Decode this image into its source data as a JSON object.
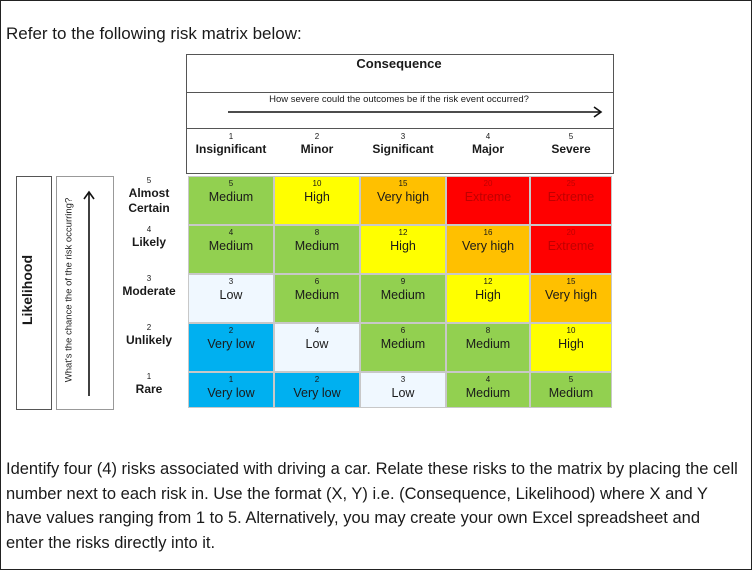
{
  "intro_text": "Refer to the following risk matrix below:",
  "matrix": {
    "consequence_title": "Consequence",
    "consequence_question": "How severe could the outcomes be if the risk event occurred?",
    "likelihood_title": "Likelihood",
    "likelihood_question": "What's the chance the of the risk occurring?",
    "columns": [
      {
        "num": "1",
        "label": "Insignificant"
      },
      {
        "num": "2",
        "label": "Minor"
      },
      {
        "num": "3",
        "label": "Significant"
      },
      {
        "num": "4",
        "label": "Major"
      },
      {
        "num": "5",
        "label": "Severe"
      }
    ],
    "rows": [
      {
        "num": "5",
        "label": "Almost Certain",
        "cells": [
          {
            "score": "5",
            "rating": "Medium",
            "color": "#92d050"
          },
          {
            "score": "10",
            "rating": "High",
            "color": "#ffff00"
          },
          {
            "score": "15",
            "rating": "Very high",
            "color": "#ffc000"
          },
          {
            "score": "20",
            "rating": "Extreme",
            "color": "#ff0000"
          },
          {
            "score": "25",
            "rating": "Extreme",
            "color": "#ff0000"
          }
        ]
      },
      {
        "num": "4",
        "label": "Likely",
        "cells": [
          {
            "score": "4",
            "rating": "Medium",
            "color": "#92d050"
          },
          {
            "score": "8",
            "rating": "Medium",
            "color": "#92d050"
          },
          {
            "score": "12",
            "rating": "High",
            "color": "#ffff00"
          },
          {
            "score": "16",
            "rating": "Very high",
            "color": "#ffc000"
          },
          {
            "score": "20",
            "rating": "Extreme",
            "color": "#ff0000"
          }
        ]
      },
      {
        "num": "3",
        "label": "Moderate",
        "cells": [
          {
            "score": "3",
            "rating": "Low",
            "color": "#f0f8ff"
          },
          {
            "score": "6",
            "rating": "Medium",
            "color": "#92d050"
          },
          {
            "score": "9",
            "rating": "Medium",
            "color": "#92d050"
          },
          {
            "score": "12",
            "rating": "High",
            "color": "#ffff00"
          },
          {
            "score": "15",
            "rating": "Very high",
            "color": "#ffc000"
          }
        ]
      },
      {
        "num": "2",
        "label": "Unlikely",
        "cells": [
          {
            "score": "2",
            "rating": "Very low",
            "color": "#00b0f0"
          },
          {
            "score": "4",
            "rating": "Low",
            "color": "#f0f8ff"
          },
          {
            "score": "6",
            "rating": "Medium",
            "color": "#92d050"
          },
          {
            "score": "8",
            "rating": "Medium",
            "color": "#92d050"
          },
          {
            "score": "10",
            "rating": "High",
            "color": "#ffff00"
          }
        ]
      },
      {
        "num": "1",
        "label": "Rare",
        "cells": [
          {
            "score": "1",
            "rating": "Very low",
            "color": "#00b0f0"
          },
          {
            "score": "2",
            "rating": "Very low",
            "color": "#00b0f0"
          },
          {
            "score": "3",
            "rating": "Low",
            "color": "#f0f8ff"
          },
          {
            "score": "4",
            "rating": "Medium",
            "color": "#92d050"
          },
          {
            "score": "5",
            "rating": "Medium",
            "color": "#92d050"
          }
        ]
      }
    ]
  },
  "question_text": "Identify four (4) risks associated with driving a car. Relate these risks to the matrix by placing the cell number next to each risk in. Use the format (X, Y) i.e. (Consequence, Likelihood) where X and Y have values ranging from 1 to 5. Alternatively, you may create your own Excel spreadsheet and enter the risks directly into it."
}
